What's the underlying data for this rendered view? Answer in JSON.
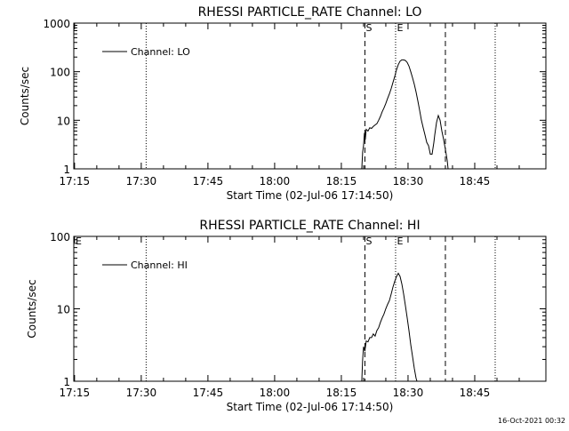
{
  "footer": {
    "timestamp": "16-Oct-2021 00:32"
  },
  "chart_data": [
    {
      "type": "line",
      "title": "RHESSI PARTICLE_RATE Channel: LO",
      "xlabel": "Start Time (02-Jul-06 17:14:50)",
      "ylabel": "Counts/sec",
      "x_unit": "minutes",
      "xlim": [
        1034.83,
        1141
      ],
      "ylim": [
        1,
        1000
      ],
      "y_scale": "log",
      "x_ticks": [
        {
          "value": 1035,
          "label": "17:15"
        },
        {
          "value": 1050,
          "label": "17:30"
        },
        {
          "value": 1065,
          "label": "17:45"
        },
        {
          "value": 1080,
          "label": "18:00"
        },
        {
          "value": 1095,
          "label": "18:15"
        },
        {
          "value": 1110,
          "label": "18:30"
        },
        {
          "value": 1125,
          "label": "18:45"
        }
      ],
      "y_ticks": [
        {
          "value": 1,
          "label": "1"
        },
        {
          "value": 10,
          "label": "10"
        },
        {
          "value": 100,
          "label": "100"
        },
        {
          "value": 1000,
          "label": "1000"
        }
      ],
      "legend": {
        "position": "top-left",
        "entries": [
          "Channel: LO"
        ]
      },
      "markers": [
        {
          "x": 1100.3,
          "style": "dashed",
          "label": "S"
        },
        {
          "x": 1107.2,
          "style": "dotted",
          "label": ""
        },
        {
          "x": 1107.3,
          "style": "none",
          "label": "E"
        },
        {
          "x": 1118.4,
          "style": "dashed",
          "label": ""
        },
        {
          "x": 1051.1,
          "style": "dotted",
          "label": ""
        },
        {
          "x": 1129.6,
          "style": "dotted",
          "label": ""
        }
      ],
      "corner_marker": "",
      "series": [
        {
          "name": "Channel: LO",
          "points": [
            [
              1099.6,
              1.0
            ],
            [
              1099.8,
              2.2
            ],
            [
              1100.0,
              3.0
            ],
            [
              1100.2,
              5.5
            ],
            [
              1100.4,
              4.0
            ],
            [
              1100.6,
              6.5
            ],
            [
              1101.0,
              6.0
            ],
            [
              1101.4,
              7.0
            ],
            [
              1101.8,
              6.8
            ],
            [
              1102.2,
              7.5
            ],
            [
              1102.6,
              8.0
            ],
            [
              1103.0,
              8.5
            ],
            [
              1103.4,
              10.0
            ],
            [
              1103.8,
              12.0
            ],
            [
              1104.2,
              15.0
            ],
            [
              1104.6,
              18.0
            ],
            [
              1105.0,
              22.0
            ],
            [
              1105.4,
              28.0
            ],
            [
              1105.8,
              35.0
            ],
            [
              1106.2,
              45.0
            ],
            [
              1106.6,
              60.0
            ],
            [
              1107.0,
              80.0
            ],
            [
              1107.4,
              110.0
            ],
            [
              1107.8,
              140.0
            ],
            [
              1108.2,
              165.0
            ],
            [
              1108.6,
              175.0
            ],
            [
              1109.0,
              175.0
            ],
            [
              1109.4,
              170.0
            ],
            [
              1109.8,
              155.0
            ],
            [
              1110.2,
              130.0
            ],
            [
              1110.6,
              100.0
            ],
            [
              1111.0,
              75.0
            ],
            [
              1111.4,
              55.0
            ],
            [
              1111.8,
              38.0
            ],
            [
              1112.2,
              25.0
            ],
            [
              1112.6,
              16.0
            ],
            [
              1113.0,
              10.0
            ],
            [
              1113.4,
              7.0
            ],
            [
              1113.8,
              5.0
            ],
            [
              1114.2,
              3.5
            ],
            [
              1114.6,
              3.0
            ],
            [
              1115.0,
              2.0
            ],
            [
              1115.4,
              2.0
            ],
            [
              1115.8,
              3.5
            ],
            [
              1116.0,
              5.0
            ],
            [
              1116.4,
              9.0
            ],
            [
              1116.8,
              12.5
            ],
            [
              1117.2,
              10.0
            ],
            [
              1117.6,
              6.0
            ],
            [
              1118.0,
              4.0
            ],
            [
              1118.4,
              2.5
            ],
            [
              1118.8,
              1.5
            ],
            [
              1119.0,
              1.0
            ]
          ]
        }
      ]
    },
    {
      "type": "line",
      "title": "RHESSI PARTICLE_RATE Channel: HI",
      "xlabel": "Start Time (02-Jul-06 17:14:50)",
      "ylabel": "Counts/sec",
      "x_unit": "minutes",
      "xlim": [
        1034.83,
        1141
      ],
      "ylim": [
        1,
        100
      ],
      "y_scale": "log",
      "x_ticks": [
        {
          "value": 1035,
          "label": "17:15"
        },
        {
          "value": 1050,
          "label": "17:30"
        },
        {
          "value": 1065,
          "label": "17:45"
        },
        {
          "value": 1080,
          "label": "18:00"
        },
        {
          "value": 1095,
          "label": "18:15"
        },
        {
          "value": 1110,
          "label": "18:30"
        },
        {
          "value": 1125,
          "label": "18:45"
        }
      ],
      "y_ticks": [
        {
          "value": 1,
          "label": "1"
        },
        {
          "value": 10,
          "label": "10"
        },
        {
          "value": 100,
          "label": "100"
        }
      ],
      "legend": {
        "position": "top-left",
        "entries": [
          "Channel: HI"
        ]
      },
      "markers": [
        {
          "x": 1100.3,
          "style": "dashed",
          "label": "S"
        },
        {
          "x": 1107.2,
          "style": "dotted",
          "label": ""
        },
        {
          "x": 1107.3,
          "style": "none",
          "label": "E"
        },
        {
          "x": 1118.4,
          "style": "dashed",
          "label": ""
        },
        {
          "x": 1051.1,
          "style": "dotted",
          "label": ""
        },
        {
          "x": 1129.6,
          "style": "dotted",
          "label": ""
        }
      ],
      "corner_marker": "E",
      "series": [
        {
          "name": "Channel: HI",
          "points": [
            [
              1099.6,
              1.0
            ],
            [
              1099.8,
              2.0
            ],
            [
              1100.0,
              3.0
            ],
            [
              1100.3,
              2.6
            ],
            [
              1100.6,
              3.6
            ],
            [
              1101.0,
              3.5
            ],
            [
              1101.4,
              4.0
            ],
            [
              1101.8,
              4.0
            ],
            [
              1102.2,
              4.5
            ],
            [
              1102.6,
              4.2
            ],
            [
              1103.0,
              5.0
            ],
            [
              1103.4,
              5.5
            ],
            [
              1103.8,
              6.5
            ],
            [
              1104.2,
              7.5
            ],
            [
              1104.6,
              8.5
            ],
            [
              1105.0,
              10.0
            ],
            [
              1105.4,
              11.5
            ],
            [
              1105.8,
              13.0
            ],
            [
              1106.2,
              16.0
            ],
            [
              1106.6,
              20.0
            ],
            [
              1107.0,
              24.0
            ],
            [
              1107.4,
              28.0
            ],
            [
              1107.8,
              31.0
            ],
            [
              1108.2,
              28.0
            ],
            [
              1108.6,
              22.0
            ],
            [
              1109.0,
              16.0
            ],
            [
              1109.4,
              11.0
            ],
            [
              1109.8,
              7.5
            ],
            [
              1110.2,
              5.0
            ],
            [
              1110.6,
              3.2
            ],
            [
              1111.0,
              2.2
            ],
            [
              1111.4,
              1.5
            ],
            [
              1111.8,
              1.1
            ],
            [
              1112.0,
              1.0
            ]
          ]
        }
      ]
    }
  ]
}
